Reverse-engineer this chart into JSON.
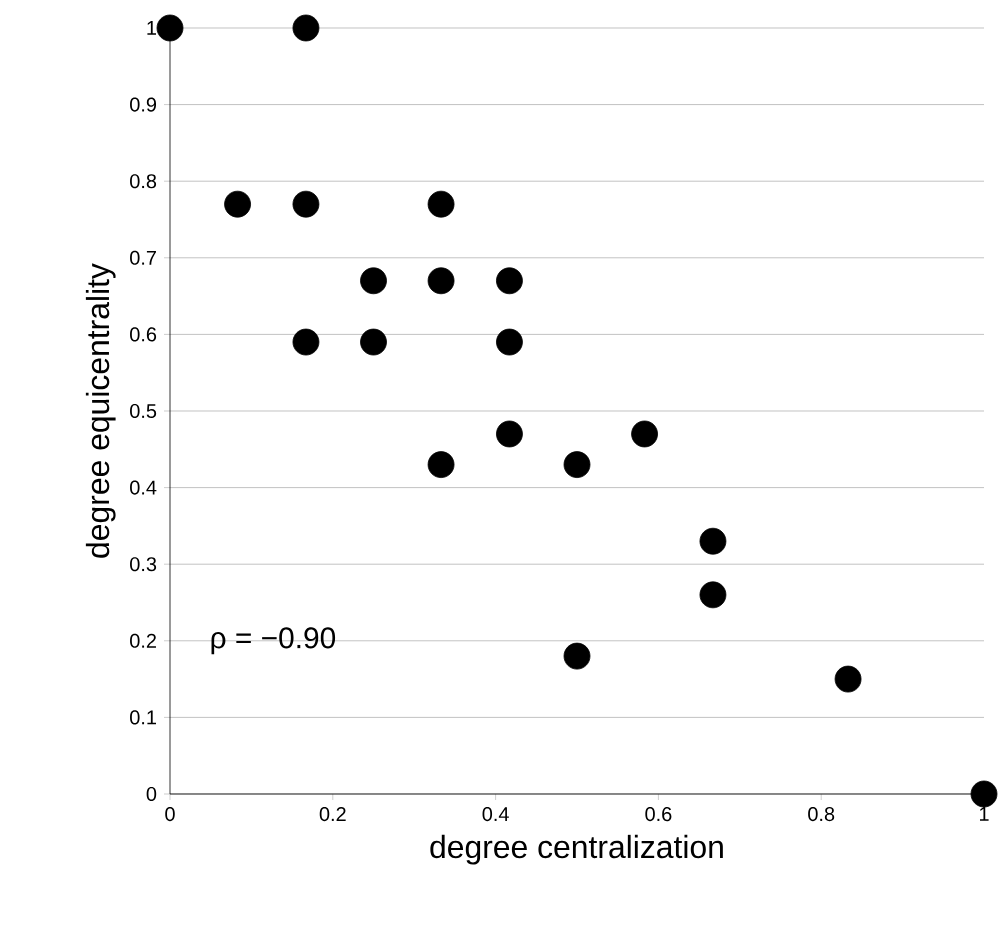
{
  "chart_data": {
    "type": "scatter",
    "xlabel": "degree centralization",
    "ylabel": "degree equicentrality",
    "x": [
      0,
      0.167,
      0.083,
      0.167,
      0.333,
      0.25,
      0.333,
      0.417,
      0.167,
      0.25,
      0.417,
      0.417,
      0.583,
      0.333,
      0.5,
      0.667,
      0.667,
      0.5,
      0.833,
      1
    ],
    "values": [
      1,
      1,
      0.77,
      0.77,
      0.77,
      0.67,
      0.67,
      0.67,
      0.59,
      0.59,
      0.59,
      0.47,
      0.47,
      0.43,
      0.43,
      0.33,
      0.26,
      0.18,
      0.15,
      0
    ],
    "color": "#000000",
    "marker": "circle",
    "grid": "y",
    "xlim": [
      0,
      1
    ],
    "xticks": [
      0,
      0.2,
      0.4,
      0.6,
      0.8,
      1
    ],
    "ylim": [
      0,
      1
    ],
    "yticks": [
      0,
      0.1,
      0.2,
      0.3,
      0.4,
      0.5,
      0.6,
      0.7,
      0.8,
      0.9,
      1
    ],
    "annotations": [
      "ρ = −0.90"
    ]
  }
}
